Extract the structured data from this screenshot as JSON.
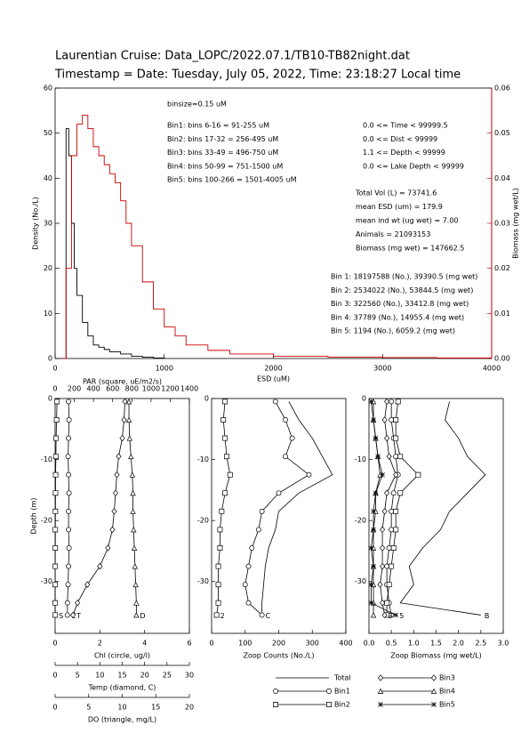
{
  "chart_data": [
    {
      "type": "step",
      "title": "Laurentian Cruise: Data_LOPC/2022.07.1/TB10-TB82night.dat",
      "subtitle": "Timestamp = Date: Tuesday, July 05, 2022, Time: 23:18:27 Local time",
      "xlabel": "ESD (uM)",
      "ylabel": "Density (No./L)",
      "y2label": "Biomass (mg wet/L)",
      "xlim": [
        0,
        4000
      ],
      "xticks": [
        0,
        1000,
        2000,
        3000,
        4000
      ],
      "ylim": [
        0,
        60
      ],
      "yticks": [
        0,
        10,
        20,
        30,
        40,
        50,
        60
      ],
      "y2lim": [
        0,
        0.06
      ],
      "y2ticks": [
        {
          "value": 0,
          "label": "0.00"
        },
        {
          "value": 0.01,
          "label": "0.01"
        },
        {
          "value": 0.02,
          "label": "0.02"
        },
        {
          "value": 0.03,
          "label": "0.03"
        },
        {
          "value": 0.04,
          "label": "0.04"
        },
        {
          "value": 0.05,
          "label": "0.05"
        },
        {
          "value": 0.06,
          "label": "0.06"
        }
      ],
      "y2color": "#cc0000",
      "series": [
        {
          "color": "#000000",
          "x": [
            75,
            100,
            125,
            150,
            175,
            200,
            250,
            300,
            350,
            400,
            450,
            500,
            600,
            700,
            800,
            900,
            1000
          ],
          "values": [
            0,
            51,
            45,
            30,
            20,
            14,
            8,
            5,
            3,
            2.5,
            2,
            1.5,
            1,
            0.5,
            0.3,
            0.1,
            0
          ]
        },
        {
          "color": "#cc0000",
          "axis": "y2",
          "x": [
            75,
            100,
            150,
            200,
            250,
            300,
            350,
            400,
            450,
            500,
            550,
            600,
            650,
            700,
            800,
            900,
            1000,
            1100,
            1200,
            1400,
            1600,
            2000,
            2500,
            3000,
            3500,
            4000
          ],
          "values": [
            0,
            0.02,
            0.045,
            0.052,
            0.054,
            0.051,
            0.047,
            0.045,
            0.043,
            0.041,
            0.039,
            0.035,
            0.03,
            0.025,
            0.017,
            0.011,
            0.007,
            0.005,
            0.003,
            0.0018,
            0.001,
            0.0005,
            0.0003,
            0.0002,
            0.0001,
            0
          ]
        }
      ],
      "annotations": {
        "bins": [
          "binsize=0.15 uM",
          "Bin1: bins 6-16 = 91-255 uM",
          "Bin2: bins 17-32 = 256-495 uM",
          "Bin3: bins 33-49 = 496-750 uM",
          "Bin4: bins 50-99 = 751-1500 uM",
          "Bin5: bins 100-266 = 1501-4005 uM"
        ],
        "ranges": [
          "0.0 <= Time < 99999.5",
          "0.0 <= Dist < 99999",
          "1.1 <= Depth < 99999",
          "0.0 <= Lake Depth < 99999"
        ],
        "stats": [
          "Total Vol (L) = 73741.6",
          "mean ESD (um) = 179.9",
          "mean ind wt (ug wet) = 7.00",
          "Animals = 21093153",
          "Biomass (mg wet) = 147662.5"
        ],
        "bin_totals": [
          "Bin 1: 18197588 (No.), 39390.5 (mg wet)",
          "Bin 2: 2534022 (No.), 53844.5 (mg wet)",
          "Bin 3: 322560 (No.), 33412.8 (mg wet)",
          "Bin 4: 37789 (No.), 14955.4 (mg wet)",
          "Bin 5: 1194 (No.), 6059.2 (mg wet)"
        ]
      }
    },
    {
      "type": "profile",
      "ylabel": "Depth (m)",
      "ylim": [
        -38.5,
        0
      ],
      "yticks": [
        0,
        -10,
        -20,
        -30
      ],
      "depth": [
        -0.5,
        -3.5,
        -6.5,
        -9.5,
        -12.5,
        -15.5,
        -18.5,
        -21.5,
        -24.5,
        -27.5,
        -30.5,
        -33.5,
        -35.5
      ],
      "x_axes": [
        {
          "label": "Chl (circle, ug/l)",
          "side": "bottom",
          "lim": [
            0,
            6
          ],
          "ticks": [
            0,
            2,
            4,
            6
          ]
        },
        {
          "label": "Temp (diamond, C)",
          "side": "bottom",
          "lim": [
            0,
            30
          ],
          "ticks": [
            0,
            5,
            10,
            15,
            20,
            25,
            30
          ]
        },
        {
          "label": "DO (triangle, mg/L)",
          "side": "bottom",
          "lim": [
            0,
            20
          ],
          "ticks": [
            0,
            5,
            10,
            15,
            20
          ]
        },
        {
          "label": "PAR (square, uE/m2/s)",
          "side": "top",
          "lim": [
            0,
            1400
          ],
          "ticks": [
            0,
            200,
            400,
            600,
            800,
            1000,
            1200,
            1400
          ]
        }
      ],
      "series": [
        {
          "marker": "square",
          "axis": 3,
          "end_label": "S",
          "values": [
            20,
            15,
            10,
            8,
            5,
            4,
            3,
            2,
            2,
            1,
            1,
            1,
            1
          ]
        },
        {
          "marker": "circle",
          "axis": 0,
          "end_label": "C",
          "values": [
            0.6,
            0.62,
            0.6,
            0.58,
            0.6,
            0.62,
            0.6,
            0.6,
            0.62,
            0.6,
            0.58,
            0.55,
            0.55
          ]
        },
        {
          "marker": "diamond",
          "axis": 1,
          "end_label": "T",
          "values": [
            15.6,
            15.4,
            15,
            14.2,
            13.8,
            13.5,
            13.2,
            12.8,
            11.8,
            10,
            7.2,
            5,
            4
          ]
        },
        {
          "marker": "triangle",
          "axis": 2,
          "end_label": "D",
          "values": [
            11,
            11,
            11.1,
            11.3,
            11.5,
            11.6,
            11.6,
            11.7,
            11.8,
            11.9,
            12,
            12.1,
            12.1
          ]
        }
      ]
    },
    {
      "type": "profile",
      "ylim": [
        -38.5,
        0
      ],
      "yticks": [
        0,
        -10,
        -20,
        -30
      ],
      "depth": [
        -0.5,
        -3.5,
        -6.5,
        -9.5,
        -12.5,
        -15.5,
        -18.5,
        -21.5,
        -24.5,
        -27.5,
        -30.5,
        -33.5,
        -35.5
      ],
      "x_axes": [
        {
          "label": "Zoop Counts (No./L)",
          "side": "bottom",
          "lim": [
            0,
            400
          ],
          "ticks": [
            0,
            100,
            200,
            300,
            400
          ]
        }
      ],
      "series": [
        {
          "marker": "none",
          "axis": 0,
          "values": [
            230,
            260,
            300,
            330,
            360,
            260,
            200,
            190,
            170,
            160,
            155,
            150,
            150
          ]
        },
        {
          "marker": "circle",
          "axis": 0,
          "end_label": "C",
          "values": [
            190,
            220,
            240,
            220,
            290,
            200,
            150,
            140,
            120,
            110,
            100,
            110,
            150
          ]
        },
        {
          "marker": "square",
          "axis": 0,
          "end_label": "2",
          "values": [
            40,
            35,
            40,
            45,
            55,
            40,
            30,
            25,
            25,
            20,
            20,
            20,
            15
          ]
        }
      ]
    },
    {
      "type": "profile",
      "ylim": [
        -38.5,
        0
      ],
      "yticks": [
        0,
        -10,
        -20,
        -30
      ],
      "depth": [
        -0.5,
        -3.5,
        -6.5,
        -9.5,
        -12.5,
        -15.5,
        -18.5,
        -21.5,
        -24.5,
        -27.5,
        -30.5,
        -33.5,
        -35.5
      ],
      "x_axes": [
        {
          "label": "Zoop Biomass (mg wet/L)",
          "side": "bottom",
          "lim": [
            0,
            3
          ],
          "ticks": [
            {
              "value": 0,
              "label": "0.0"
            },
            0.5,
            {
              "value": 1,
              "label": "1.0"
            },
            1.5,
            {
              "value": 2,
              "label": "2.0"
            },
            2.5,
            {
              "value": 3,
              "label": "3.0"
            }
          ]
        }
      ],
      "series": [
        {
          "name": "Total",
          "marker": "none",
          "axis": 0,
          "end_label": "B",
          "values": [
            1.8,
            1.7,
            2.0,
            2.2,
            2.6,
            2.2,
            1.8,
            1.6,
            1.2,
            0.9,
            1.0,
            0.7,
            2.5
          ]
        },
        {
          "name": "Bin1",
          "marker": "circle",
          "axis": 0,
          "values": [
            0.5,
            0.5,
            0.55,
            0.6,
            0.65,
            0.55,
            0.5,
            0.5,
            0.45,
            0.4,
            0.4,
            0.45,
            0.5
          ]
        },
        {
          "name": "Bin2",
          "marker": "square",
          "axis": 0,
          "values": [
            0.65,
            0.6,
            0.6,
            0.7,
            1.1,
            0.7,
            0.6,
            0.6,
            0.55,
            0.5,
            0.45,
            0.4,
            0.4
          ]
        },
        {
          "name": "Bin3",
          "marker": "diamond",
          "axis": 0,
          "end_label": "3",
          "values": [
            0.4,
            0.35,
            0.4,
            0.45,
            0.6,
            0.4,
            0.35,
            0.3,
            0.3,
            0.3,
            0.25,
            0.3,
            0.35
          ]
        },
        {
          "name": "Bin4",
          "marker": "triangle",
          "axis": 0,
          "values": [
            0.1,
            0.1,
            0.15,
            0.2,
            0.25,
            0.15,
            0.15,
            0.1,
            0.1,
            0.1,
            0.1,
            0.1,
            0.1
          ]
        },
        {
          "name": "Bin5",
          "marker": "star",
          "axis": 0,
          "end_label": "5",
          "values": [
            0.05,
            0.1,
            0.15,
            0.2,
            0.3,
            0.15,
            0.1,
            0.1,
            0.05,
            0.1,
            0.05,
            0.05,
            0.6
          ]
        }
      ]
    }
  ]
}
